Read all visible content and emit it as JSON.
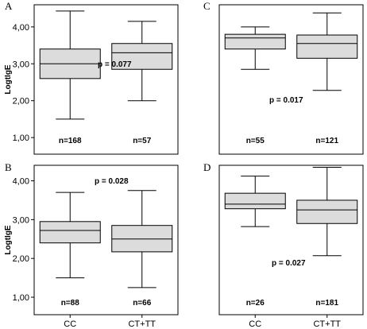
{
  "chart_data": [
    {
      "panel": "A",
      "type": "boxplot",
      "ylabel": "LogtIgE",
      "yticks": [
        "1,00",
        "2,00",
        "3,00",
        "4,00"
      ],
      "ylim": [
        0.55,
        4.6
      ],
      "categories": [
        "CC",
        "CT+TT"
      ],
      "p_value": "p = 0.077",
      "boxes": [
        {
          "n": "n=168",
          "min": 1.5,
          "q1": 2.6,
          "median": 3.0,
          "q3": 3.4,
          "max": 4.43
        },
        {
          "n": "n=57",
          "min": 2.0,
          "q1": 2.85,
          "median": 3.3,
          "q3": 3.55,
          "max": 4.15
        }
      ]
    },
    {
      "panel": "C",
      "type": "boxplot",
      "ylabel": "",
      "yticks": [],
      "ylim": [
        0.55,
        4.6
      ],
      "categories": [
        "CC",
        "CT+TT"
      ],
      "p_value": "p = 0.017",
      "boxes": [
        {
          "n": "n=55",
          "min": 2.85,
          "q1": 3.4,
          "median": 3.7,
          "q3": 3.8,
          "max": 4.0
        },
        {
          "n": "n=121",
          "min": 2.28,
          "q1": 3.15,
          "median": 3.55,
          "q3": 3.78,
          "max": 4.38
        }
      ]
    },
    {
      "panel": "B",
      "type": "boxplot",
      "ylabel": "LogtIgE",
      "yticks": [
        "1,00",
        "2,00",
        "3,00",
        "4,00"
      ],
      "ylim": [
        0.55,
        4.4
      ],
      "categories": [
        "CC",
        "CT+TT"
      ],
      "p_value": "p = 0.028",
      "boxes": [
        {
          "n": "n=88",
          "min": 1.5,
          "q1": 2.4,
          "median": 2.72,
          "q3": 2.95,
          "max": 3.7
        },
        {
          "n": "n=66",
          "min": 1.25,
          "q1": 2.17,
          "median": 2.5,
          "q3": 2.85,
          "max": 3.75
        }
      ]
    },
    {
      "panel": "D",
      "type": "boxplot",
      "ylabel": "",
      "yticks": [],
      "ylim": [
        0.55,
        4.4
      ],
      "categories": [
        "CC",
        "CT+TT"
      ],
      "p_value": "p = 0.027",
      "boxes": [
        {
          "n": "n=26",
          "min": 2.82,
          "q1": 3.28,
          "median": 3.4,
          "q3": 3.68,
          "max": 4.12
        },
        {
          "n": "n=181",
          "min": 2.07,
          "q1": 2.9,
          "median": 3.25,
          "q3": 3.5,
          "max": 4.35
        }
      ]
    }
  ],
  "colors": {
    "box_fill": "#dcdcdc",
    "stroke": "#000000"
  }
}
